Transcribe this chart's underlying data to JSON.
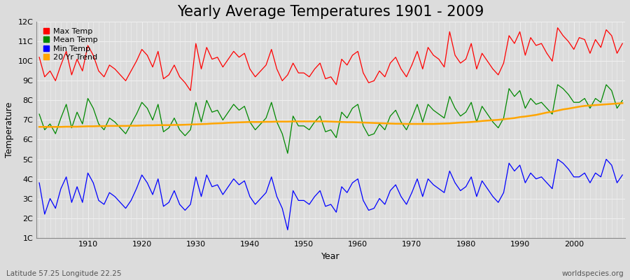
{
  "title": "Yearly Average Temperatures 1901 - 2009",
  "xlabel": "Year",
  "ylabel": "Temperature",
  "subtitle_left": "Latitude 57.25 Longitude 22.25",
  "subtitle_right": "worldspecies.org",
  "years": [
    1901,
    1902,
    1903,
    1904,
    1905,
    1906,
    1907,
    1908,
    1909,
    1910,
    1911,
    1912,
    1913,
    1914,
    1915,
    1916,
    1917,
    1918,
    1919,
    1920,
    1921,
    1922,
    1923,
    1924,
    1925,
    1926,
    1927,
    1928,
    1929,
    1930,
    1931,
    1932,
    1933,
    1934,
    1935,
    1936,
    1937,
    1938,
    1939,
    1940,
    1941,
    1942,
    1943,
    1944,
    1945,
    1946,
    1947,
    1948,
    1949,
    1950,
    1951,
    1952,
    1953,
    1954,
    1955,
    1956,
    1957,
    1958,
    1959,
    1960,
    1961,
    1962,
    1963,
    1964,
    1965,
    1966,
    1967,
    1968,
    1969,
    1970,
    1971,
    1972,
    1973,
    1974,
    1975,
    1976,
    1977,
    1978,
    1979,
    1980,
    1981,
    1982,
    1983,
    1984,
    1985,
    1986,
    1987,
    1988,
    1989,
    1990,
    1991,
    1992,
    1993,
    1994,
    1995,
    1996,
    1997,
    1998,
    1999,
    2000,
    2001,
    2002,
    2003,
    2004,
    2005,
    2006,
    2007,
    2008,
    2009
  ],
  "max_temp": [
    10.2,
    9.2,
    9.5,
    9.0,
    9.8,
    10.5,
    9.3,
    10.1,
    9.5,
    10.8,
    10.3,
    9.5,
    9.2,
    9.8,
    9.6,
    9.3,
    9.0,
    9.5,
    10.0,
    10.6,
    10.3,
    9.7,
    10.5,
    9.1,
    9.3,
    9.8,
    9.2,
    8.9,
    8.5,
    10.9,
    9.6,
    10.7,
    10.1,
    10.2,
    9.7,
    10.1,
    10.5,
    10.2,
    10.4,
    9.6,
    9.2,
    9.5,
    9.8,
    10.6,
    9.6,
    9.0,
    9.3,
    9.9,
    9.4,
    9.4,
    9.2,
    9.6,
    9.9,
    9.1,
    9.2,
    8.8,
    10.1,
    9.8,
    10.3,
    10.5,
    9.4,
    8.9,
    9.0,
    9.5,
    9.2,
    9.9,
    10.2,
    9.6,
    9.2,
    9.8,
    10.5,
    9.6,
    10.7,
    10.3,
    10.1,
    9.7,
    11.5,
    10.3,
    9.9,
    10.1,
    10.9,
    9.6,
    10.4,
    10.0,
    9.6,
    9.3,
    9.9,
    11.3,
    10.9,
    11.5,
    10.3,
    11.2,
    10.8,
    10.9,
    10.4,
    10.0,
    11.7,
    11.3,
    11.0,
    10.6,
    11.2,
    11.1,
    10.4,
    11.1,
    10.7,
    11.6,
    11.3,
    10.4,
    10.9
  ],
  "mean_temp": [
    7.3,
    6.5,
    6.8,
    6.3,
    7.1,
    7.8,
    6.6,
    7.4,
    6.8,
    8.1,
    7.6,
    6.8,
    6.5,
    7.1,
    6.9,
    6.6,
    6.3,
    6.8,
    7.3,
    7.9,
    7.6,
    7.0,
    7.8,
    6.4,
    6.6,
    7.1,
    6.5,
    6.2,
    6.5,
    7.9,
    6.9,
    8.0,
    7.4,
    7.5,
    7.0,
    7.4,
    7.8,
    7.5,
    7.7,
    6.9,
    6.5,
    6.8,
    7.1,
    7.9,
    6.9,
    6.3,
    5.3,
    7.2,
    6.7,
    6.7,
    6.5,
    6.9,
    7.2,
    6.4,
    6.5,
    6.1,
    7.4,
    7.1,
    7.6,
    7.8,
    6.7,
    6.2,
    6.3,
    6.8,
    6.5,
    7.2,
    7.5,
    6.9,
    6.5,
    7.1,
    7.8,
    6.9,
    7.8,
    7.5,
    7.3,
    7.1,
    8.2,
    7.6,
    7.2,
    7.4,
    7.9,
    6.9,
    7.7,
    7.3,
    6.9,
    6.6,
    7.1,
    8.6,
    8.2,
    8.5,
    7.6,
    8.1,
    7.8,
    7.9,
    7.6,
    7.3,
    8.8,
    8.6,
    8.3,
    7.9,
    7.9,
    8.1,
    7.6,
    8.1,
    7.9,
    8.8,
    8.5,
    7.6,
    8.0
  ],
  "min_temp": [
    3.8,
    2.2,
    3.0,
    2.5,
    3.5,
    4.1,
    2.8,
    3.6,
    2.8,
    4.3,
    3.8,
    2.9,
    2.7,
    3.3,
    3.1,
    2.8,
    2.5,
    2.9,
    3.5,
    4.2,
    3.8,
    3.2,
    4.0,
    2.6,
    2.8,
    3.4,
    2.7,
    2.4,
    2.7,
    4.1,
    3.1,
    4.2,
    3.6,
    3.7,
    3.2,
    3.6,
    4.0,
    3.7,
    3.9,
    3.1,
    2.7,
    3.0,
    3.3,
    4.1,
    3.1,
    2.5,
    1.4,
    3.4,
    2.9,
    2.9,
    2.7,
    3.1,
    3.4,
    2.6,
    2.7,
    2.3,
    3.6,
    3.3,
    3.8,
    4.0,
    2.9,
    2.4,
    2.5,
    3.0,
    2.7,
    3.4,
    3.7,
    3.1,
    2.7,
    3.3,
    4.0,
    3.1,
    4.0,
    3.7,
    3.5,
    3.3,
    4.4,
    3.8,
    3.4,
    3.6,
    4.1,
    3.1,
    3.9,
    3.5,
    3.1,
    2.8,
    3.3,
    4.8,
    4.4,
    4.7,
    3.8,
    4.3,
    4.0,
    4.1,
    3.8,
    3.5,
    5.0,
    4.8,
    4.5,
    4.1,
    4.1,
    4.3,
    3.8,
    4.3,
    4.1,
    5.0,
    4.7,
    3.8,
    4.2
  ],
  "trend": [
    6.65,
    6.65,
    6.65,
    6.65,
    6.65,
    6.66,
    6.66,
    6.66,
    6.67,
    6.68,
    6.68,
    6.69,
    6.69,
    6.7,
    6.7,
    6.7,
    6.7,
    6.71,
    6.71,
    6.72,
    6.73,
    6.73,
    6.74,
    6.74,
    6.74,
    6.75,
    6.75,
    6.76,
    6.77,
    6.78,
    6.79,
    6.8,
    6.82,
    6.83,
    6.84,
    6.86,
    6.87,
    6.88,
    6.89,
    6.9,
    6.9,
    6.9,
    6.91,
    6.91,
    6.92,
    6.92,
    6.92,
    6.93,
    6.93,
    6.93,
    6.93,
    6.93,
    6.93,
    6.93,
    6.92,
    6.91,
    6.9,
    6.89,
    6.89,
    6.88,
    6.87,
    6.86,
    6.85,
    6.84,
    6.83,
    6.82,
    6.81,
    6.81,
    6.8,
    6.8,
    6.8,
    6.8,
    6.8,
    6.8,
    6.81,
    6.82,
    6.83,
    6.85,
    6.87,
    6.88,
    6.9,
    6.92,
    6.95,
    6.97,
    6.99,
    7.01,
    7.04,
    7.07,
    7.1,
    7.15,
    7.18,
    7.22,
    7.26,
    7.32,
    7.38,
    7.42,
    7.48,
    7.54,
    7.58,
    7.63,
    7.68,
    7.72,
    7.74,
    7.76,
    7.78,
    7.8,
    7.82,
    7.84,
    7.86
  ],
  "bg_color": "#dcdcdc",
  "plot_bg_color": "#dcdcdc",
  "max_color": "#ff0000",
  "mean_color": "#008800",
  "min_color": "#0000ff",
  "trend_color": "#ffa500",
  "grid_color": "#f0f0f0",
  "ylim": [
    1,
    12
  ],
  "yticks": [
    1,
    2,
    3,
    4,
    5,
    6,
    7,
    8,
    9,
    10,
    11,
    12
  ],
  "ytick_labels": [
    "1C",
    "2C",
    "3C",
    "4C",
    "5C",
    "6C",
    "7C",
    "8C",
    "9C",
    "10C",
    "11C",
    "12C"
  ],
  "xlim_min": 1901,
  "xlim_max": 2009,
  "xticks": [
    1910,
    1920,
    1930,
    1940,
    1950,
    1960,
    1970,
    1980,
    1990,
    2000
  ],
  "title_fontsize": 15,
  "label_fontsize": 9,
  "tick_fontsize": 8,
  "legend_fontsize": 8,
  "dot_year": 2009,
  "dot_val": 4.2,
  "dot_color": "#0000ff"
}
